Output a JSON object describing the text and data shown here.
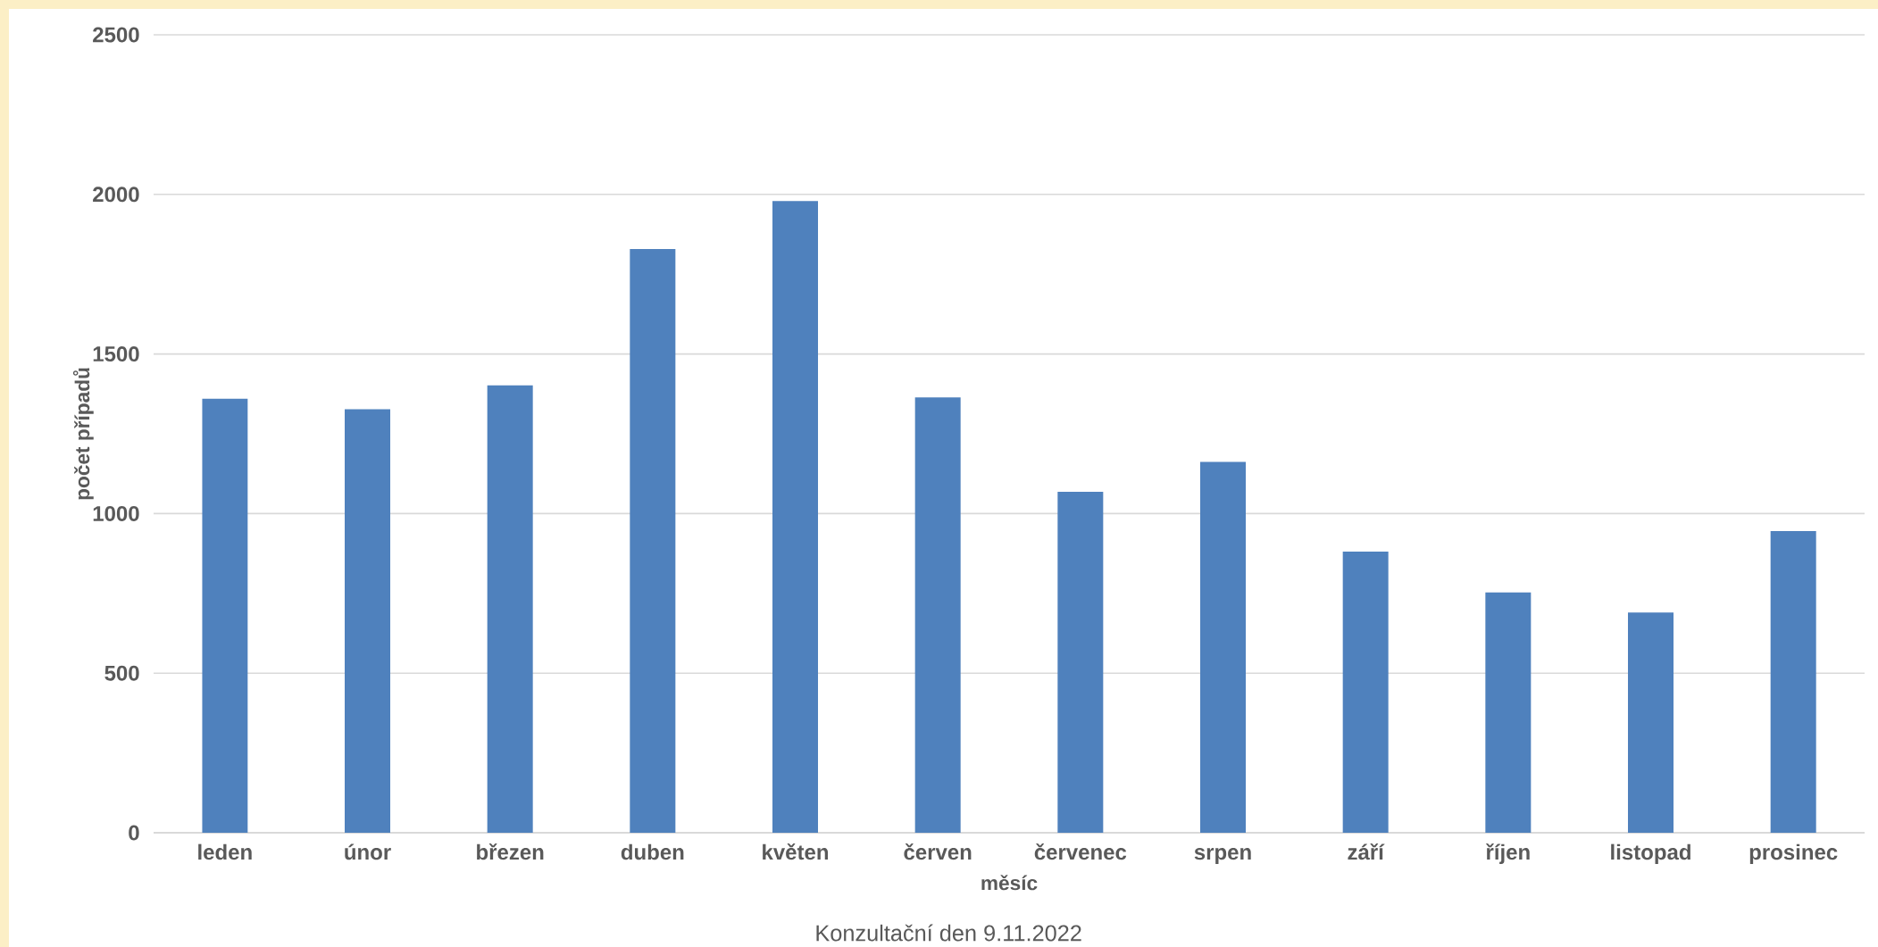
{
  "chart_data": {
    "type": "bar",
    "xlabel": "měsíc",
    "ylabel": "počet případů",
    "categories": [
      "leden",
      "únor",
      "březen",
      "duben",
      "květen",
      "červen",
      "červenec",
      "srpen",
      "září",
      "říjen",
      "listopad",
      "prosinec"
    ],
    "values": [
      1360,
      1327,
      1402,
      1829,
      1979,
      1364,
      1068,
      1162,
      881,
      753,
      690,
      945
    ],
    "color": "#4f81bd",
    "ylim": [
      0,
      2500
    ],
    "yticks": [
      0,
      500,
      1000,
      1500,
      2000,
      2500
    ],
    "grid": "y",
    "annotations": [
      "Konzultační den 9.11.2022"
    ]
  }
}
